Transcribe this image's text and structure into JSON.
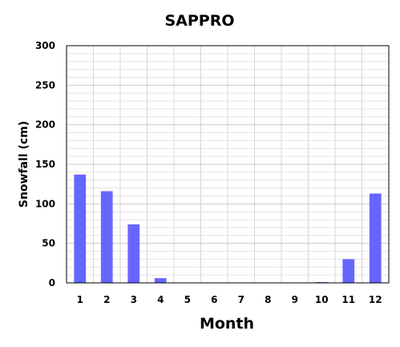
{
  "chart_data": {
    "type": "bar",
    "title": "SAPPRO",
    "xlabel": "Month",
    "ylabel": "Snowfall (cm)",
    "categories": [
      "1",
      "2",
      "3",
      "4",
      "5",
      "6",
      "7",
      "8",
      "9",
      "10",
      "11",
      "12"
    ],
    "values": [
      137,
      116,
      74,
      6,
      0,
      0,
      0,
      0,
      0,
      1,
      30,
      113
    ],
    "ylim": [
      0,
      300
    ],
    "yticks": [
      "0",
      "50",
      "100",
      "150",
      "200",
      "250",
      "300"
    ],
    "grid": true,
    "legend": "none",
    "bar_color": "#6666ff"
  }
}
